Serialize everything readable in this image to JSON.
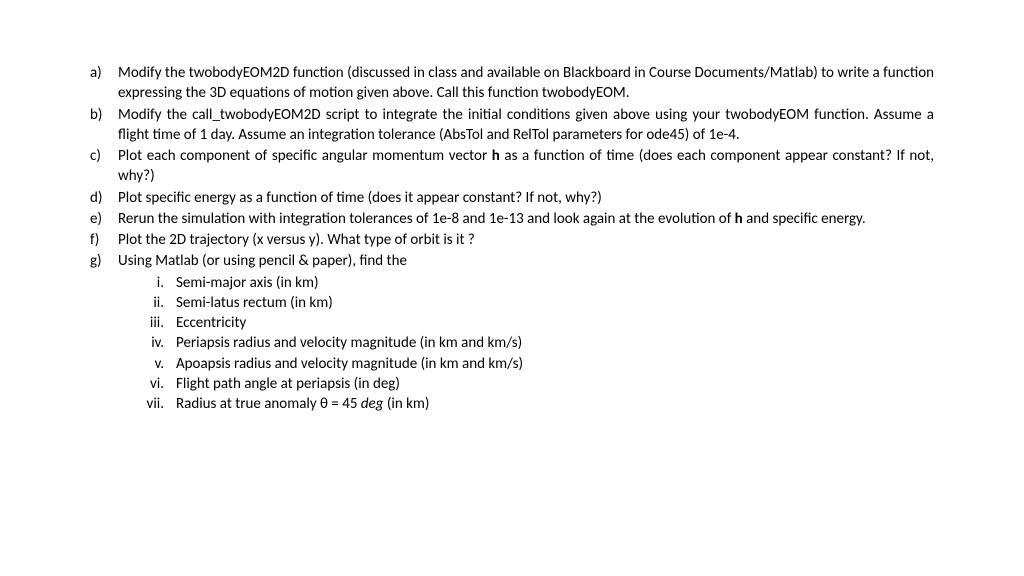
{
  "items": [
    {
      "marker": "a)",
      "text_prefix": "Modify the twobodyEOM2D function (discussed in class and available on Blackboard in Course Documents/Matlab) to write a function expressing the 3D equations of motion given above. Call this function ",
      "text_suffix": "twobodyEOM."
    },
    {
      "marker": "b)",
      "text": "Modify the call_twobodyEOM2D script to integrate the initial conditions given above using your twobodyEOM function. Assume a flight time of 1 day. Assume an integration tolerance (AbsTol and RelTol parameters for ode45) of 1e-4."
    },
    {
      "marker": "c)",
      "text_prefix": "Plot each component of specific angular momentum vector ",
      "bold_part": "h",
      "text_suffix": " as a function of time (does each component appear constant? If not, why?)"
    },
    {
      "marker": "d)",
      "text": "Plot specific energy as a function of time (does it appear constant? If not, why?)"
    },
    {
      "marker": "e)",
      "text_prefix": "Rerun the simulation with integration tolerances of 1e-8 and 1e-13 and look again at the evolution of ",
      "bold_part": "h",
      "text_suffix": " and specific energy."
    },
    {
      "marker": "f)",
      "text": "Plot the 2D trajectory (x versus y). What type of orbit is it ?"
    },
    {
      "marker": "g)",
      "text": "Using Matlab (or using pencil & paper), find the"
    }
  ],
  "subitems": [
    {
      "marker": "i.",
      "text": "Semi-major axis (in km)"
    },
    {
      "marker": "ii.",
      "text": "Semi-latus rectum (in km)"
    },
    {
      "marker": "iii.",
      "text": "Eccentricity"
    },
    {
      "marker": "iv.",
      "text": "Periapsis radius and velocity magnitude (in km and km/s)"
    },
    {
      "marker": "v.",
      "text": "Apoapsis radius and velocity magnitude (in km and km/s)"
    },
    {
      "marker": "vi.",
      "text": "Flight path angle at periapsis (in deg)"
    },
    {
      "marker": "vii.",
      "text_prefix": "Radius at true anomaly ",
      "theta_text": "θ = 45 ",
      "italic_part": "deg",
      "text_suffix": " (in km)"
    }
  ]
}
